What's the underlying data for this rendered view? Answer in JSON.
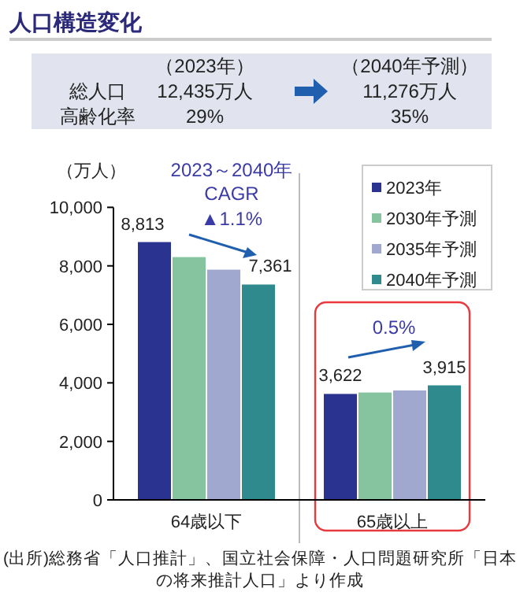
{
  "chart_data": {
    "type": "bar",
    "title": "人口構造変化",
    "ylabel": "（万人）",
    "categories": [
      "64歳以下",
      "65歳以上"
    ],
    "series": [
      {
        "name": "2023年",
        "color": "#2b3390",
        "values": [
          8813,
          3622
        ],
        "value_labels": [
          "8,813",
          "3,622"
        ]
      },
      {
        "name": "2030年予測",
        "color": "#86c4a0",
        "values": [
          8300,
          3670
        ],
        "value_labels": [
          null,
          null
        ]
      },
      {
        "name": "2035年予測",
        "color": "#a0a8d0",
        "values": [
          7870,
          3740
        ],
        "value_labels": [
          null,
          null
        ]
      },
      {
        "name": "2040年予測",
        "color": "#2e8a8c",
        "values": [
          7361,
          3915
        ],
        "value_labels": [
          "7,361",
          "3,915"
        ]
      }
    ],
    "ylim": [
      0,
      10000
    ],
    "yticks": [
      {
        "value": 0,
        "label": "0"
      },
      {
        "value": 2000,
        "label": "2,000"
      },
      {
        "value": 4000,
        "label": "4,000"
      },
      {
        "value": 6000,
        "label": "6,000"
      },
      {
        "value": 8000,
        "label": "8,000"
      },
      {
        "value": 10000,
        "label": "10,000"
      }
    ],
    "grid": false,
    "legend": "top right",
    "annotations": [
      "（2023年）",
      "総人口",
      "12,435万人",
      "高齢化率",
      "29%",
      "（2040年予測）",
      "11,276万人",
      "35%",
      "2023～2040年",
      "CAGR",
      "▲1.1%",
      "0.5%",
      "(出所)総務省「人口推計」、国立社会保障・人口問題研究所「日本の将来推計人口」より作成"
    ]
  }
}
